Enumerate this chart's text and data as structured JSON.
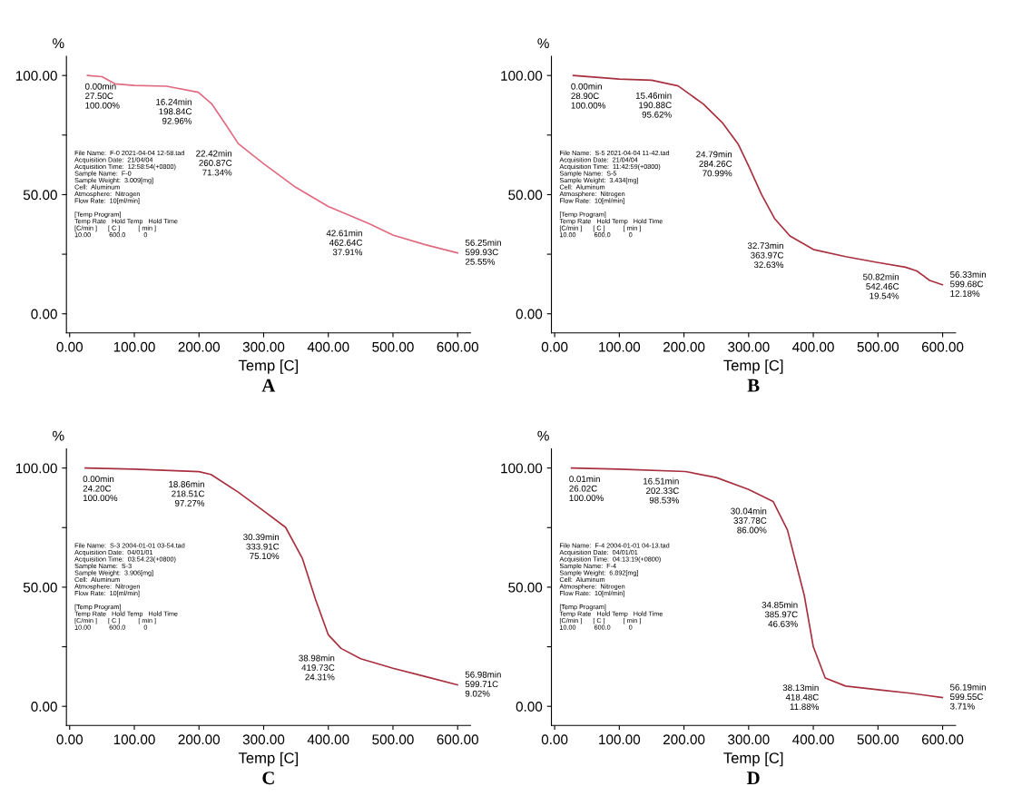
{
  "chart_data": [
    {
      "type": "line",
      "title": "A",
      "xlabel": "Temp [C]",
      "ylabel": "%",
      "xlim": [
        -5,
        620
      ],
      "ylim": [
        -8,
        108
      ],
      "grid": false,
      "marker": "none",
      "line_style": "solid",
      "xticks": [
        {
          "value": 0,
          "label": "0.00"
        },
        {
          "value": 100,
          "label": "100.00"
        },
        {
          "value": 200,
          "label": "200.00"
        },
        {
          "value": 300,
          "label": "300.00"
        },
        {
          "value": 400,
          "label": "400.00"
        },
        {
          "value": 500,
          "label": "500.00"
        },
        {
          "value": 600,
          "label": "600.00"
        }
      ],
      "yticks": [
        {
          "value": 0,
          "label": "0.00"
        },
        {
          "value": 25,
          "label": null
        },
        {
          "value": 50,
          "label": "50.00"
        },
        {
          "value": 75,
          "label": null
        },
        {
          "value": 100,
          "label": "100.00"
        }
      ],
      "series": [
        {
          "color": "#e06a80",
          "x": [
            27.5,
            50,
            70,
            100,
            150,
            198.84,
            220,
            240,
            260.87,
            300,
            350,
            400,
            462.64,
            500,
            550,
            599.93
          ],
          "values": [
            100,
            99.5,
            96.5,
            95.8,
            95.5,
            92.96,
            88,
            80,
            71.34,
            63,
            53,
            45,
            37.91,
            33,
            29,
            25.55
          ]
        }
      ],
      "annotations": [
        {
          "text": "0.00min\n27.50C\n100.00%",
          "x": 27.5,
          "y": 100
        },
        {
          "text": "16.24min\n198.84C\n92.96%",
          "x": 198.84,
          "y": 92.96
        },
        {
          "text": "22.42min\n260.87C\n71.34%",
          "x": 260.87,
          "y": 71.34
        },
        {
          "text": "42.61min\n462.64C\n37.91%",
          "x": 462.64,
          "y": 37.91
        },
        {
          "text": "56.25min\n599.93C\n25.55%",
          "x": 599.93,
          "y": 25.55
        },
        "File Name:  F-0 2021-04-04 12-58.tad\nAcquisition Date:  21/04/04\nAcquisition Time:  12:58:54(+0800)\nSample Name:  F-0\nSample Weight:  3.009[mg]\nCell:  Aluminum\nAtmosphere:  Nitrogen\nFlow Rate:  10[ml/min]\n\n[Temp Program]\nTemp Rate   Hold Temp   Hold Time\n[C/min ]      [ C ]          [ min ]\n10.00          600.0          0"
      ]
    },
    {
      "type": "line",
      "title": "B",
      "xlabel": "Temp [C]",
      "ylabel": "%",
      "xlim": [
        -5,
        620
      ],
      "ylim": [
        -8,
        108
      ],
      "grid": false,
      "marker": "none",
      "line_style": "solid",
      "xticks": [
        {
          "value": 0,
          "label": "0.00"
        },
        {
          "value": 100,
          "label": "100.00"
        },
        {
          "value": 200,
          "label": "200.00"
        },
        {
          "value": 300,
          "label": "300.00"
        },
        {
          "value": 400,
          "label": "400.00"
        },
        {
          "value": 500,
          "label": "500.00"
        },
        {
          "value": 600,
          "label": "600.00"
        }
      ],
      "yticks": [
        {
          "value": 0,
          "label": "0.00"
        },
        {
          "value": 25,
          "label": null
        },
        {
          "value": 50,
          "label": "50.00"
        },
        {
          "value": 75,
          "label": null
        },
        {
          "value": 100,
          "label": "100.00"
        }
      ],
      "series": [
        {
          "color": "#a8303f",
          "x": [
            28.9,
            100,
            150,
            190.88,
            230,
            260,
            284.26,
            300,
            320,
            340,
            363.97,
            400,
            450,
            500,
            542.46,
            560,
            580,
            599.68
          ],
          "values": [
            100,
            98.5,
            98,
            95.62,
            88,
            80,
            70.99,
            62,
            50,
            40,
            32.63,
            27,
            24,
            21.5,
            19.54,
            18,
            14,
            12.18
          ]
        }
      ],
      "annotations": [
        {
          "text": "0.00min\n28.90C\n100.00%",
          "x": 28.9,
          "y": 100
        },
        {
          "text": "15.46min\n190.88C\n95.62%",
          "x": 190.88,
          "y": 95.62
        },
        {
          "text": "24.79min\n284.26C\n70.99%",
          "x": 284.26,
          "y": 70.99
        },
        {
          "text": "32.73min\n363.97C\n32.63%",
          "x": 363.97,
          "y": 32.63
        },
        {
          "text": "50.82min\n542.46C\n19.54%",
          "x": 542.46,
          "y": 19.54
        },
        {
          "text": "56.33min\n599.68C\n12.18%",
          "x": 599.68,
          "y": 12.18
        },
        "File Name:  S-5 2021-04-04 11-42.tad\nAcquisition Date:  21/04/04\nAcquisition Time:  11:42:59(+0800)\nSample Name:  S-5\nSample Weight:  3.434[mg]\nCell:  Aluminum\nAtmosphere:  Nitrogen\nFlow Rate:  10[ml/min]\n\n[Temp Program]\nTemp Rate   Hold Temp   Hold Time\n[C/min ]      [ C ]          [ min ]\n10.00          600.0          0"
      ]
    },
    {
      "type": "line",
      "title": "C",
      "xlabel": "Temp [C]",
      "ylabel": "%",
      "xlim": [
        -5,
        620
      ],
      "ylim": [
        -8,
        108
      ],
      "grid": false,
      "marker": "none",
      "line_style": "solid",
      "xticks": [
        {
          "value": 0,
          "label": "0.00"
        },
        {
          "value": 100,
          "label": "100.00"
        },
        {
          "value": 200,
          "label": "200.00"
        },
        {
          "value": 300,
          "label": "300.00"
        },
        {
          "value": 400,
          "label": "400.00"
        },
        {
          "value": 500,
          "label": "500.00"
        },
        {
          "value": 600,
          "label": "600.00"
        }
      ],
      "yticks": [
        {
          "value": 0,
          "label": "0.00"
        },
        {
          "value": 25,
          "label": null
        },
        {
          "value": 50,
          "label": "50.00"
        },
        {
          "value": 75,
          "label": null
        },
        {
          "value": 100,
          "label": "100.00"
        }
      ],
      "series": [
        {
          "color": "#a8303f",
          "x": [
            24.2,
            100,
            200,
            218.51,
            260,
            300,
            333.91,
            360,
            380,
            400,
            419.73,
            450,
            500,
            550,
            599.71
          ],
          "values": [
            100,
            99.5,
            98.5,
            97.27,
            90,
            82,
            75.1,
            62,
            45,
            30,
            24.31,
            20,
            16,
            12.5,
            9.02
          ]
        }
      ],
      "annotations": [
        {
          "text": "0.00min\n24.20C\n100.00%",
          "x": 24.2,
          "y": 100
        },
        {
          "text": "18.86min\n218.51C\n97.27%",
          "x": 218.51,
          "y": 97.27
        },
        {
          "text": "30.39min\n333.91C\n75.10%",
          "x": 333.91,
          "y": 75.1
        },
        {
          "text": "38.98min\n419.73C\n24.31%",
          "x": 419.73,
          "y": 24.31
        },
        {
          "text": "56.98min\n599.71C\n9.02%",
          "x": 599.71,
          "y": 9.02
        },
        "File Name:  S-3 2004-01-01 03-54.tad\nAcquisition Date:  04/01/01\nAcquisition Time:  03:54:23(+0800)\nSample Name:  S-3\nSample Weight:  3.906[mg]\nCell:  Aluminum\nAtmosphere:  Nitrogen\nFlow Rate:  10[ml/min]\n\n[Temp Program]\nTemp Rate   Hold Temp   Hold Time\n[C/min ]      [ C ]          [ min ]\n10.00          600.0          0"
      ]
    },
    {
      "type": "line",
      "title": "D",
      "xlabel": "Temp [C]",
      "ylabel": "%",
      "xlim": [
        -5,
        620
      ],
      "ylim": [
        -8,
        108
      ],
      "grid": false,
      "marker": "none",
      "line_style": "solid",
      "xticks": [
        {
          "value": 0,
          "label": "0.00"
        },
        {
          "value": 100,
          "label": "100.00"
        },
        {
          "value": 200,
          "label": "200.00"
        },
        {
          "value": 300,
          "label": "300.00"
        },
        {
          "value": 400,
          "label": "400.00"
        },
        {
          "value": 500,
          "label": "500.00"
        },
        {
          "value": 600,
          "label": "600.00"
        }
      ],
      "yticks": [
        {
          "value": 0,
          "label": "0.00"
        },
        {
          "value": 25,
          "label": null
        },
        {
          "value": 50,
          "label": "50.00"
        },
        {
          "value": 75,
          "label": null
        },
        {
          "value": 100,
          "label": "100.00"
        }
      ],
      "series": [
        {
          "color": "#a8303f",
          "x": [
            26.02,
            100,
            202.33,
            250,
            300,
            337.78,
            360,
            385.97,
            400,
            418.48,
            450,
            500,
            550,
            599.55
          ],
          "values": [
            100,
            99.5,
            98.53,
            96,
            91,
            86,
            74,
            46.63,
            25,
            11.88,
            8.5,
            7,
            5.5,
            3.71
          ]
        }
      ],
      "annotations": [
        {
          "text": "0.01min\n26.02C\n100.00%",
          "x": 26.02,
          "y": 100
        },
        {
          "text": "16.51min\n202.33C\n98.53%",
          "x": 202.33,
          "y": 98.53
        },
        {
          "text": "30.04min\n337.78C\n86.00%",
          "x": 337.78,
          "y": 86
        },
        {
          "text": "34.85min\n385.97C\n46.63%",
          "x": 385.97,
          "y": 46.63
        },
        {
          "text": "38.13min\n418.48C\n11.88%",
          "x": 418.48,
          "y": 11.88
        },
        {
          "text": "56.19min\n599.55C\n3.71%",
          "x": 599.55,
          "y": 3.71
        },
        "File Name:  F-4 2004-01-01 04-13.tad\nAcquisition Date:  04/01/01\nAcquisition Time:  04:13:19(+0800)\nSample Name:  F-4\nSample Weight:  6.892[mg]\nCell:  Aluminum\nAtmosphere:  Nitrogen\nFlow Rate:  10[ml/min]\n\n[Temp Program]\nTemp Rate   Hold Temp   Hold Time\n[C/min ]      [ C ]          [ min ]\n10.00          600.0          0"
      ]
    }
  ]
}
